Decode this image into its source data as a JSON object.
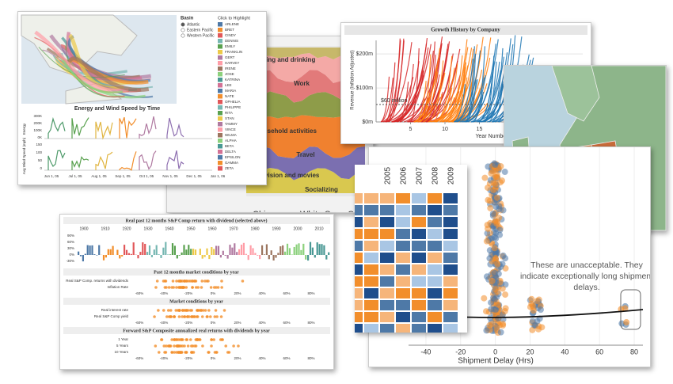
{
  "hurricane": {
    "basin_title": "Basin",
    "basins": [
      "Atlantic",
      "Eastern Pacific",
      "Western Pacific"
    ],
    "highlight_title": "Click to Highlight",
    "storms": [
      "ARLENE",
      "BRET",
      "CINDY",
      "DENNIS",
      "EMILY",
      "FRANKLIN",
      "GERT",
      "HARVEY",
      "IRENE",
      "JOSE",
      "KATRINA",
      "LEE",
      "MARIA",
      "NATE",
      "OPHELIA",
      "PHILIPPE",
      "RITA",
      "STAN",
      "TAMMY",
      "VINCE",
      "WILMA",
      "ALPHA",
      "BETA",
      "DELTA",
      "EPSILON",
      "GAMMA",
      "ZETA"
    ],
    "chart_title": "Energy and Wind Speed by Time",
    "energy_label": "Energy",
    "wind_label": "Avg Wind Speed (mph)",
    "energy_ticks": [
      "300K",
      "200K",
      "100K",
      "0K"
    ],
    "wind_ticks": [
      "150",
      "100",
      "50",
      "0"
    ],
    "x_ticks": [
      "Jun 1, 05",
      "Jul 1, 05",
      "Aug 1, 05",
      "Sep 1, 05",
      "Oct 1, 05",
      "Nov 1, 05",
      "Dec 1, 05",
      "Jan 1, 06"
    ]
  },
  "time_use": {
    "layers": [
      "Eating and drinking",
      "Work",
      "Household activities",
      "Travel",
      "Television and movies",
      "Socializing"
    ],
    "bottom_labels": [
      "Chicago",
      "White Sox",
      "Central"
    ]
  },
  "growth": {
    "title": "Growth History by Company",
    "y_label": "Revenue (Inflation Adjusted)",
    "x_label": "Year Number",
    "annotation": "$60 million",
    "ylim": [
      0,
      240
    ],
    "yticks": [
      {
        "value": 0,
        "label": "$0m"
      },
      {
        "value": 100,
        "label": "$100m"
      },
      {
        "value": 200,
        "label": "$200m"
      }
    ],
    "xlim": [
      0,
      30
    ],
    "xticks": [
      5,
      10,
      15
    ]
  },
  "heatmap": {
    "columns": [
      "2005",
      "2006",
      "2007",
      "2008",
      "2009"
    ]
  },
  "sp": {
    "title": "Real past 12 months S&P Comp return with dividend (selected above)",
    "decades": [
      "1900",
      "1910",
      "1920",
      "1930",
      "1940",
      "1950",
      "1960",
      "1970",
      "1980",
      "1990",
      "2000",
      "2010"
    ],
    "y_ticks": [
      "90%",
      "60%",
      "30%",
      "0%",
      "-30%"
    ],
    "section1": "Past 12 months market conditions by year",
    "section1_rows": [
      "Real S&P Comp. returns with dividends",
      "Inflation Rate"
    ],
    "section2": "Market conditions by year",
    "section2_rows": [
      "Real interest rate",
      "Real S&P Comp yield"
    ],
    "section3": "Forward S&P Composite annualized real returns with dividends by year",
    "section3_rows": [
      "1 Year",
      "5 Years",
      "10 Years"
    ],
    "axis_ticks": [
      "-60%",
      "-40%",
      "-20%",
      "0%",
      "20%",
      "40%",
      "60%",
      "80%"
    ]
  },
  "scatter": {
    "annotation": "These are unacceptable. They indicate exceptionally long shipment delays.",
    "x_label": "Shipment Delay (Hrs)",
    "xlim": [
      -50,
      85
    ],
    "xticks": [
      -40,
      -20,
      0,
      20,
      40,
      60,
      80
    ]
  }
}
